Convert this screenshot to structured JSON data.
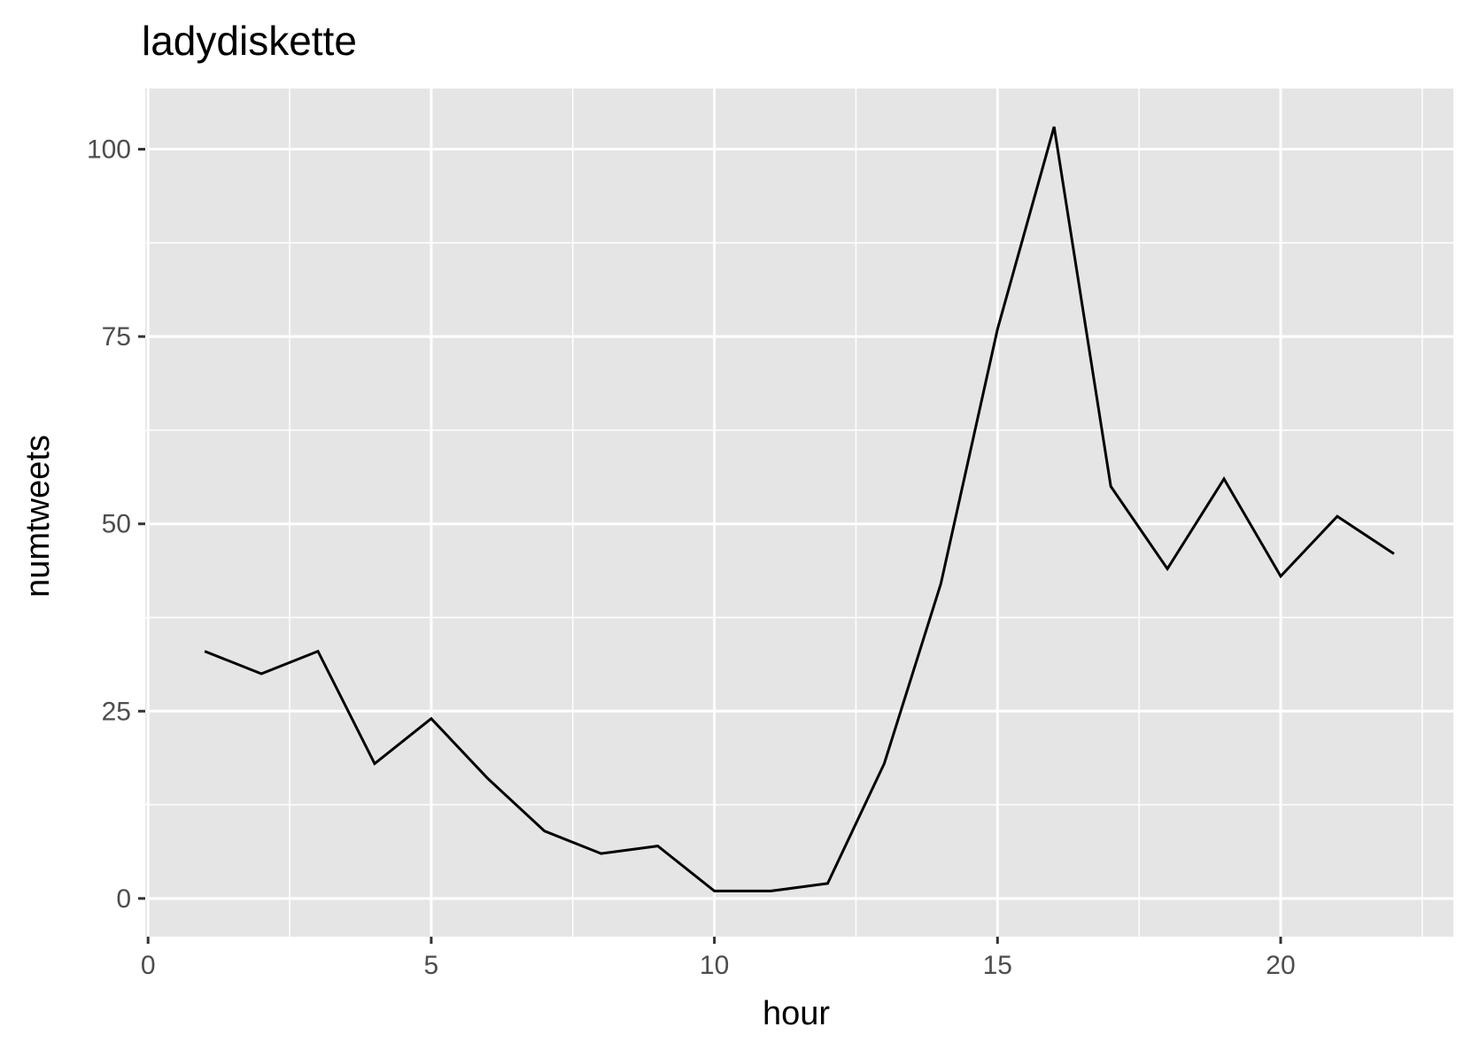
{
  "chart_data": {
    "type": "line",
    "title": "ladydiskette",
    "xlabel": "hour",
    "ylabel": "numtweets",
    "xlim": [
      -0.05,
      23.05
    ],
    "ylim": [
      -5.1,
      108.1
    ],
    "x_ticks": [
      0,
      5,
      10,
      15,
      20
    ],
    "x_tick_labels": [
      "0",
      "5",
      "10",
      "15",
      "20"
    ],
    "x_minor_ticks": [
      2.5,
      7.5,
      12.5,
      17.5,
      22.5
    ],
    "y_ticks": [
      0,
      25,
      50,
      75,
      100
    ],
    "y_tick_labels": [
      "0",
      "25",
      "50",
      "75",
      "100"
    ],
    "y_minor_ticks": [
      12.5,
      37.5,
      62.5,
      87.5
    ],
    "grid": true,
    "legend": "none",
    "colors": {
      "panel_background": "#e5e5e5",
      "grid_line": "#ffffff",
      "series_line": "#000000",
      "tick_mark": "#333333",
      "tick_label": "#4d4d4d"
    },
    "series": [
      {
        "x": [
          1,
          2,
          3,
          4,
          5,
          6,
          7,
          8,
          9,
          10,
          11,
          12,
          13,
          14,
          15,
          16,
          17,
          18,
          19,
          20,
          21,
          22
        ],
        "values": [
          33,
          30,
          33,
          18,
          24,
          16,
          9,
          6,
          7,
          1,
          1,
          2,
          18,
          42,
          76,
          103,
          55,
          44,
          56,
          43,
          51,
          46
        ]
      }
    ]
  }
}
